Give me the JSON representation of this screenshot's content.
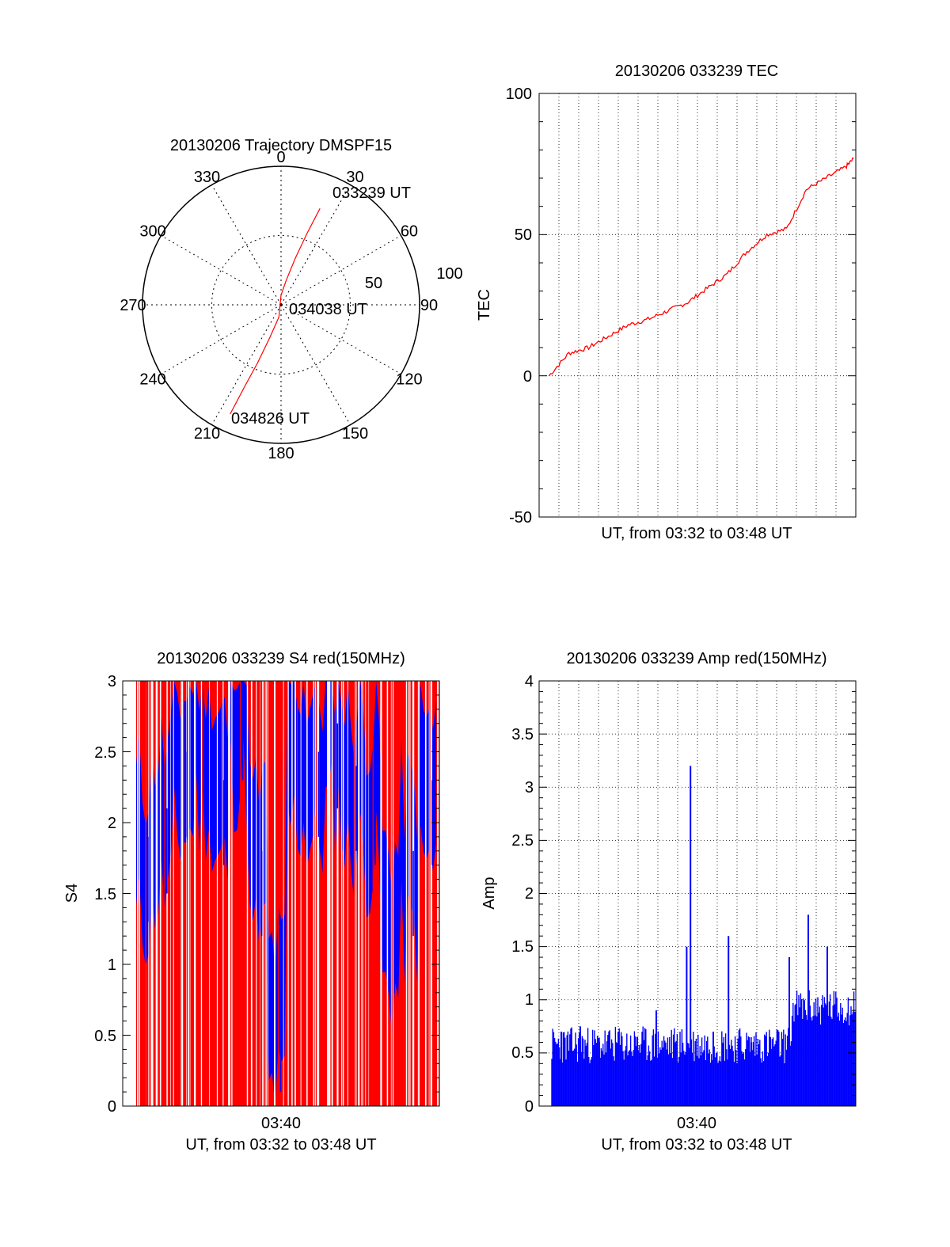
{
  "chart_data": [
    {
      "type": "polar",
      "title": "20130206 Trajectory DMSPF15",
      "azimuth_labels": [
        "0",
        "30",
        "60",
        "90",
        "120",
        "150",
        "180",
        "210",
        "240",
        "270",
        "300",
        "330"
      ],
      "radial_labels": [
        "50",
        "100"
      ],
      "rlim": [
        0,
        100
      ],
      "grid": true,
      "series": [
        {
          "color": "#ff0000",
          "points": [
            {
              "az": 22,
              "zen": 75
            },
            {
              "az": 20,
              "zen": 55
            },
            {
              "az": 17,
              "zen": 35
            },
            {
              "az": 12,
              "zen": 18
            },
            {
              "az": 0,
              "zen": 7
            },
            {
              "az": 190,
              "zen": 9
            },
            {
              "az": 199,
              "zen": 25
            },
            {
              "az": 202,
              "zen": 45
            },
            {
              "az": 204,
              "zen": 65
            },
            {
              "az": 205,
              "zen": 87
            }
          ]
        }
      ],
      "annotations": [
        {
          "text": "033239 UT",
          "az": 22,
          "zen": 75
        },
        {
          "text": "034038 UT",
          "az": 0,
          "zen": 0
        },
        {
          "text": "034826 UT",
          "az": 205,
          "zen": 87
        }
      ]
    },
    {
      "type": "line",
      "title": "20130206 033239 TEC",
      "xlabel": "UT, from 03:32 to 03:48 UT",
      "ylabel": "TEC",
      "ylim": [
        -50,
        100
      ],
      "yticks": [
        "100",
        "50",
        "0",
        "-50"
      ],
      "xlim": [
        0,
        16
      ],
      "grid": true,
      "series": [
        {
          "color": "#ff0000",
          "x": [
            0.5,
            1.5,
            2.5,
            3.5,
            4.5,
            5.5,
            6.5,
            7.5,
            8.5,
            9.5,
            10.5,
            11.5,
            12.5,
            13.5,
            14.5,
            15.5,
            15.9
          ],
          "y": [
            0,
            8,
            10,
            14,
            18,
            20,
            23,
            26,
            31,
            36,
            44,
            50,
            52,
            66,
            70,
            74,
            77
          ]
        }
      ]
    },
    {
      "type": "bar",
      "title": "20130206 033239 S4 red(150MHz)",
      "xlabel": "UT, from 03:32 to 03:48 UT",
      "ylabel": "S4",
      "ylim": [
        0,
        3
      ],
      "yticks": [
        "3",
        "2.5",
        "2",
        "1.5",
        "1",
        "0.5",
        "0"
      ],
      "xticks": [
        "03:40"
      ],
      "grid": true,
      "series": [
        {
          "name": "",
          "color": "#ff0000",
          "x": [
            0.5,
            1.5,
            2.5,
            3.5,
            4.5,
            5.5,
            6.5,
            7.5,
            8.5,
            9.5,
            10.5,
            11.5,
            12.5,
            13.5,
            14.5,
            15.5
          ],
          "y": [
            3,
            3,
            3,
            3,
            3,
            3,
            3,
            3,
            3,
            3,
            3,
            3,
            3,
            3,
            3,
            3
          ]
        },
        {
          "name": "",
          "color": "#0000ff",
          "x": [
            0.5,
            1.5,
            2.5,
            3.5,
            4.5,
            5.5,
            6.5,
            7.5,
            8.5,
            9.5,
            10.5,
            11.5,
            12.5,
            13.5,
            14.5,
            15.5
          ],
          "y": [
            1.6,
            1.8,
            2.2,
            2.4,
            2.0,
            2.6,
            1.5,
            0.4,
            2.3,
            2.2,
            2.4,
            2.1,
            2.0,
            1.1,
            1.5,
            2.0
          ]
        }
      ]
    },
    {
      "type": "bar",
      "title": "20130206 033239 Amp red(150MHz)",
      "xlabel": "UT, from 03:32 to 03:48 UT",
      "ylabel": "Amp",
      "ylim": [
        0,
        4
      ],
      "yticks": [
        "4",
        "3.5",
        "3",
        "2.5",
        "2",
        "1.5",
        "1",
        "0.5",
        "0"
      ],
      "xticks": [
        "03:40"
      ],
      "grid": true,
      "series": [
        {
          "name": "",
          "color": "#0000ff",
          "x": [
            0.5,
            1.5,
            2.5,
            3.5,
            4.5,
            5.5,
            6.5,
            7.1,
            7.3,
            8.5,
            9.3,
            10.5,
            11.5,
            12.5,
            13.5,
            14.5,
            15.5
          ],
          "y": [
            0.7,
            0.75,
            0.6,
            0.7,
            0.65,
            0.9,
            0.6,
            1.5,
            3.2,
            0.7,
            1.6,
            0.6,
            0.65,
            1.4,
            1.8,
            1.5,
            0.8
          ]
        }
      ]
    }
  ]
}
